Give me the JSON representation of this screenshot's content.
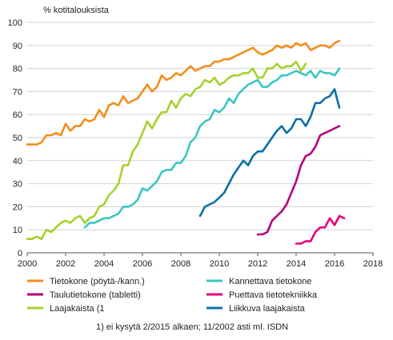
{
  "chart_data": {
    "type": "line",
    "ylabel": "% kotitalouksista",
    "xlim": [
      2000,
      2018
    ],
    "ylim": [
      0,
      100
    ],
    "x_ticks": [
      2000,
      2002,
      2004,
      2006,
      2008,
      2010,
      2012,
      2014,
      2016,
      2018
    ],
    "y_ticks": [
      0,
      10,
      20,
      30,
      40,
      50,
      60,
      70,
      80,
      90,
      100
    ],
    "grid": "horizontal",
    "legend_position": "bottom",
    "note": "1) ei kysytä 2/2015 alkaen; 11/2002 asti ml. ISDN",
    "series": [
      {
        "name": "Tietokone (pöytä-/kann.)",
        "color": "#F28E1C",
        "points": [
          [
            2000.0,
            47
          ],
          [
            2000.25,
            47
          ],
          [
            2000.5,
            47
          ],
          [
            2000.75,
            48
          ],
          [
            2001.0,
            51
          ],
          [
            2001.25,
            51
          ],
          [
            2001.5,
            52
          ],
          [
            2001.75,
            51
          ],
          [
            2002.0,
            56
          ],
          [
            2002.25,
            53
          ],
          [
            2002.5,
            55
          ],
          [
            2002.75,
            55
          ],
          [
            2003.0,
            58
          ],
          [
            2003.25,
            57
          ],
          [
            2003.5,
            58
          ],
          [
            2003.75,
            62
          ],
          [
            2004.0,
            59
          ],
          [
            2004.25,
            64
          ],
          [
            2004.5,
            65
          ],
          [
            2004.75,
            64
          ],
          [
            2005.0,
            68
          ],
          [
            2005.25,
            65
          ],
          [
            2005.5,
            66
          ],
          [
            2005.75,
            67
          ],
          [
            2006.0,
            70
          ],
          [
            2006.25,
            73
          ],
          [
            2006.5,
            70
          ],
          [
            2006.75,
            72
          ],
          [
            2007.0,
            77
          ],
          [
            2007.25,
            75
          ],
          [
            2007.5,
            76
          ],
          [
            2007.75,
            78
          ],
          [
            2008.0,
            77
          ],
          [
            2008.25,
            79
          ],
          [
            2008.5,
            81
          ],
          [
            2008.75,
            79
          ],
          [
            2009.0,
            80
          ],
          [
            2009.25,
            81
          ],
          [
            2009.5,
            81
          ],
          [
            2009.75,
            83
          ],
          [
            2010.0,
            83
          ],
          [
            2010.25,
            84
          ],
          [
            2010.5,
            84
          ],
          [
            2010.75,
            85
          ],
          [
            2011.0,
            86
          ],
          [
            2011.25,
            87
          ],
          [
            2011.5,
            88
          ],
          [
            2011.75,
            89
          ],
          [
            2012.0,
            87
          ],
          [
            2012.25,
            86
          ],
          [
            2012.5,
            87
          ],
          [
            2012.75,
            88
          ],
          [
            2013.0,
            90
          ],
          [
            2013.25,
            89
          ],
          [
            2013.5,
            90
          ],
          [
            2013.75,
            89
          ],
          [
            2014.0,
            91
          ],
          [
            2014.25,
            90
          ],
          [
            2014.5,
            91
          ],
          [
            2014.75,
            88
          ],
          [
            2015.0,
            89
          ],
          [
            2015.25,
            90
          ],
          [
            2015.5,
            90
          ],
          [
            2015.75,
            89
          ],
          [
            2016.0,
            91
          ],
          [
            2016.25,
            92
          ]
        ]
      },
      {
        "name": "Kannettava tietokone",
        "color": "#3CC6C0",
        "points": [
          [
            2003.0,
            11
          ],
          [
            2003.25,
            13
          ],
          [
            2003.5,
            13
          ],
          [
            2003.75,
            14
          ],
          [
            2004.0,
            15
          ],
          [
            2004.25,
            15
          ],
          [
            2004.5,
            16
          ],
          [
            2004.75,
            17
          ],
          [
            2005.0,
            20
          ],
          [
            2005.25,
            20
          ],
          [
            2005.5,
            21
          ],
          [
            2005.75,
            23
          ],
          [
            2006.0,
            28
          ],
          [
            2006.25,
            27
          ],
          [
            2006.5,
            29
          ],
          [
            2006.75,
            31
          ],
          [
            2007.0,
            35
          ],
          [
            2007.25,
            36
          ],
          [
            2007.5,
            36
          ],
          [
            2007.75,
            39
          ],
          [
            2008.0,
            39
          ],
          [
            2008.25,
            42
          ],
          [
            2008.5,
            48
          ],
          [
            2008.75,
            50
          ],
          [
            2009.0,
            55
          ],
          [
            2009.25,
            57
          ],
          [
            2009.5,
            58
          ],
          [
            2009.75,
            62
          ],
          [
            2010.0,
            61
          ],
          [
            2010.25,
            63
          ],
          [
            2010.5,
            67
          ],
          [
            2010.75,
            65
          ],
          [
            2011.0,
            69
          ],
          [
            2011.25,
            71
          ],
          [
            2011.5,
            73
          ],
          [
            2011.75,
            74
          ],
          [
            2012.0,
            75
          ],
          [
            2012.25,
            72
          ],
          [
            2012.5,
            72
          ],
          [
            2012.75,
            74
          ],
          [
            2013.0,
            75
          ],
          [
            2013.25,
            77
          ],
          [
            2013.5,
            77
          ],
          [
            2013.75,
            78
          ],
          [
            2014.0,
            79
          ],
          [
            2014.25,
            78
          ],
          [
            2014.5,
            77
          ],
          [
            2014.75,
            79
          ],
          [
            2015.0,
            76
          ],
          [
            2015.25,
            79
          ],
          [
            2015.5,
            78
          ],
          [
            2015.75,
            78
          ],
          [
            2016.0,
            77
          ],
          [
            2016.25,
            80
          ]
        ]
      },
      {
        "name": "Taulutietokone (tabletti)",
        "color": "#B5007A",
        "points": [
          [
            2012.0,
            8
          ],
          [
            2012.25,
            8
          ],
          [
            2012.5,
            9
          ],
          [
            2012.75,
            14
          ],
          [
            2013.0,
            16
          ],
          [
            2013.25,
            18
          ],
          [
            2013.5,
            21
          ],
          [
            2013.75,
            26
          ],
          [
            2014.0,
            31
          ],
          [
            2014.25,
            38
          ],
          [
            2014.5,
            42
          ],
          [
            2014.75,
            43
          ],
          [
            2015.0,
            46
          ],
          [
            2015.25,
            51
          ],
          [
            2015.5,
            52
          ],
          [
            2015.75,
            53
          ],
          [
            2016.0,
            54
          ],
          [
            2016.25,
            55
          ]
        ]
      },
      {
        "name": "Puettava tietotekniikka",
        "color": "#E5007E",
        "points": [
          [
            2014.0,
            4
          ],
          [
            2014.25,
            4
          ],
          [
            2014.5,
            5
          ],
          [
            2014.75,
            5
          ],
          [
            2015.0,
            9
          ],
          [
            2015.25,
            11
          ],
          [
            2015.5,
            11
          ],
          [
            2015.75,
            15
          ],
          [
            2016.0,
            12
          ],
          [
            2016.25,
            16
          ],
          [
            2016.5,
            15
          ]
        ]
      },
      {
        "name": "Laajakaista (1",
        "color": "#A5D22E",
        "points": [
          [
            2000.0,
            6
          ],
          [
            2000.25,
            6
          ],
          [
            2000.5,
            7
          ],
          [
            2000.75,
            6
          ],
          [
            2001.0,
            10
          ],
          [
            2001.25,
            9
          ],
          [
            2001.5,
            11
          ],
          [
            2001.75,
            13
          ],
          [
            2002.0,
            14
          ],
          [
            2002.25,
            13
          ],
          [
            2002.5,
            15
          ],
          [
            2002.75,
            16
          ],
          [
            2003.0,
            13
          ],
          [
            2003.25,
            15
          ],
          [
            2003.5,
            16
          ],
          [
            2003.75,
            20
          ],
          [
            2004.0,
            21
          ],
          [
            2004.25,
            25
          ],
          [
            2004.5,
            27
          ],
          [
            2004.75,
            30
          ],
          [
            2005.0,
            38
          ],
          [
            2005.25,
            38
          ],
          [
            2005.5,
            44
          ],
          [
            2005.75,
            47
          ],
          [
            2006.0,
            52
          ],
          [
            2006.25,
            57
          ],
          [
            2006.5,
            54
          ],
          [
            2006.75,
            58
          ],
          [
            2007.0,
            61
          ],
          [
            2007.25,
            61
          ],
          [
            2007.5,
            66
          ],
          [
            2007.75,
            63
          ],
          [
            2008.0,
            67
          ],
          [
            2008.25,
            69
          ],
          [
            2008.5,
            68
          ],
          [
            2008.75,
            71
          ],
          [
            2009.0,
            72
          ],
          [
            2009.25,
            75
          ],
          [
            2009.5,
            74
          ],
          [
            2009.75,
            76
          ],
          [
            2010.0,
            73
          ],
          [
            2010.25,
            74
          ],
          [
            2010.5,
            76
          ],
          [
            2010.75,
            77
          ],
          [
            2011.0,
            77
          ],
          [
            2011.25,
            78
          ],
          [
            2011.5,
            78
          ],
          [
            2011.75,
            80
          ],
          [
            2012.0,
            76
          ],
          [
            2012.25,
            76
          ],
          [
            2012.5,
            80
          ],
          [
            2012.75,
            80
          ],
          [
            2013.0,
            82
          ],
          [
            2013.25,
            80
          ],
          [
            2013.5,
            81
          ],
          [
            2013.75,
            81
          ],
          [
            2014.0,
            83
          ],
          [
            2014.25,
            79
          ],
          [
            2014.5,
            82
          ]
        ]
      },
      {
        "name": "Liikkuva laajakaista",
        "color": "#0E6FA3",
        "points": [
          [
            2009.0,
            16
          ],
          [
            2009.25,
            20
          ],
          [
            2009.5,
            21
          ],
          [
            2009.75,
            22
          ],
          [
            2010.0,
            24
          ],
          [
            2010.25,
            26
          ],
          [
            2010.5,
            30
          ],
          [
            2010.75,
            34
          ],
          [
            2011.0,
            37
          ],
          [
            2011.25,
            40
          ],
          [
            2011.5,
            38
          ],
          [
            2011.75,
            42
          ],
          [
            2012.0,
            44
          ],
          [
            2012.25,
            44
          ],
          [
            2012.5,
            47
          ],
          [
            2012.75,
            50
          ],
          [
            2013.0,
            53
          ],
          [
            2013.25,
            55
          ],
          [
            2013.5,
            52
          ],
          [
            2013.75,
            54
          ],
          [
            2014.0,
            58
          ],
          [
            2014.25,
            58
          ],
          [
            2014.5,
            55
          ],
          [
            2014.75,
            59
          ],
          [
            2015.0,
            65
          ],
          [
            2015.25,
            65
          ],
          [
            2015.5,
            67
          ],
          [
            2015.75,
            68
          ],
          [
            2016.0,
            71
          ],
          [
            2016.25,
            63
          ]
        ]
      }
    ]
  }
}
